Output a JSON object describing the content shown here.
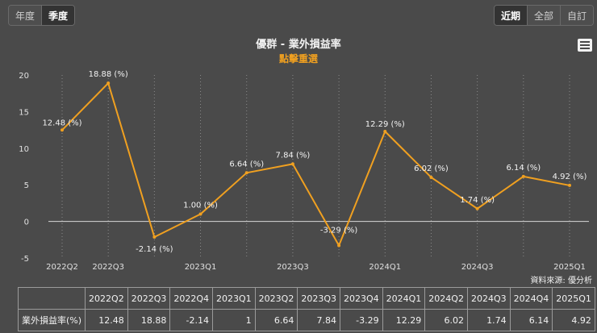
{
  "toolbar": {
    "left": [
      "年度",
      "季度"
    ],
    "left_active": 1,
    "right": [
      "近期",
      "全部",
      "自訂"
    ],
    "right_active": 0
  },
  "menu_icon": "hamburger-menu-icon",
  "source": "資料來源: 優分析",
  "colors": {
    "line": "#f0a020",
    "subtitle": "#f0a020",
    "background": "#4a4a4a"
  },
  "chart_data": {
    "type": "line",
    "title": "優群 - 業外損益率",
    "subtitle": "點擊重選",
    "categories": [
      "2022Q2",
      "2022Q3",
      "2022Q4",
      "2023Q1",
      "2023Q2",
      "2023Q3",
      "2023Q4",
      "2024Q1",
      "2024Q2",
      "2024Q3",
      "2024Q4",
      "2025Q1"
    ],
    "x_tick_labels": [
      "2022Q2",
      "2022Q3",
      "",
      "2023Q1",
      "",
      "2023Q3",
      "",
      "2024Q1",
      "",
      "2024Q3",
      "",
      "2025Q1"
    ],
    "series": [
      {
        "values": [
          12.48,
          18.88,
          -2.14,
          1.0,
          6.64,
          7.84,
          -3.29,
          12.29,
          6.02,
          1.74,
          6.14,
          4.92
        ]
      }
    ],
    "data_labels": [
      "12.48 (%)",
      "18.88 (%)",
      "-2.14 (%)",
      "1.00 (%)",
      "6.64 (%)",
      "7.84 (%)",
      "-3.29 (%)",
      "12.29 (%)",
      "6.02 (%)",
      "1.74 (%)",
      "6.14 (%)",
      "4.92 (%)"
    ],
    "yticks": [
      -5,
      0,
      5,
      10,
      15,
      20
    ],
    "ylim": [
      -5,
      20
    ],
    "grid": "vertical dotted"
  },
  "table": {
    "header": [
      "",
      "2022Q2",
      "2022Q3",
      "2022Q4",
      "2023Q1",
      "2023Q2",
      "2023Q3",
      "2023Q4",
      "2024Q1",
      "2024Q2",
      "2024Q3",
      "2024Q4",
      "2025Q1"
    ],
    "row_label": "業外損益率(%)",
    "row": [
      "12.48",
      "18.88",
      "-2.14",
      "1",
      "6.64",
      "7.84",
      "-3.29",
      "12.29",
      "6.02",
      "1.74",
      "6.14",
      "4.92"
    ]
  }
}
